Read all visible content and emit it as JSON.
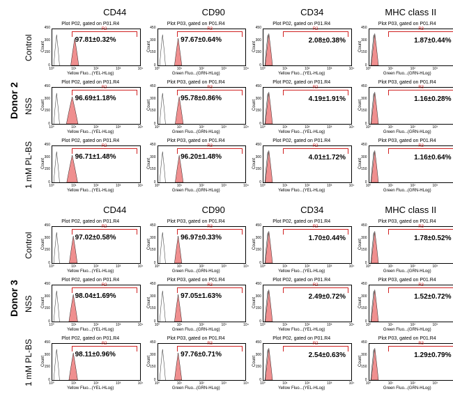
{
  "markers": [
    "CD44",
    "CD90",
    "CD34",
    "MHC class II"
  ],
  "donors": [
    {
      "label": "Donor 2",
      "rows": [
        {
          "row_label": "Control",
          "cells": [
            {
              "title": "Plot P02, gated on P01.R4",
              "gate": "R2",
              "value": "97.81±0.32%",
              "axis": "Yellow Fluo...(YEL-HLog)",
              "type": "high",
              "peak_center": 0.62,
              "peak_width": 0.22
            },
            {
              "title": "Plot P03, gated on P01.R4",
              "gate": "R3",
              "value": "97.67±0.64%",
              "axis": "Green Fluo...(GRN-HLog)",
              "type": "high",
              "peak_center": 0.55,
              "peak_width": 0.2
            },
            {
              "title": "Plot P02, gated on P01.R4",
              "gate": "R2",
              "value": "2.08±0.38%",
              "axis": "Yellow Fluo...(YEL-HLog)",
              "type": "low",
              "peak_center": 0.17,
              "peak_width": 0.1
            },
            {
              "title": "Plot P03, gated on P01.R4",
              "gate": "R3",
              "value": "1.87±0.44%",
              "axis": "Green Fluo...(GRN-HLog)",
              "type": "low",
              "peak_center": 0.15,
              "peak_width": 0.1
            }
          ]
        },
        {
          "row_label": "NSS",
          "cells": [
            {
              "title": "Plot P02, gated on P01.R4",
              "gate": "R2",
              "value": "96.69±1.18%",
              "axis": "Yellow Fluo...(YEL-HLog)",
              "type": "high",
              "peak_center": 0.55,
              "peak_width": 0.32
            },
            {
              "title": "Plot P03, gated on P01.R4",
              "gate": "R3",
              "value": "95.78±0.86%",
              "axis": "Green Fluo...(GRN-HLog)",
              "type": "high",
              "peak_center": 0.58,
              "peak_width": 0.22
            },
            {
              "title": "Plot P02, gated on P01.R4",
              "gate": "R2",
              "value": "4.19±1.91%",
              "axis": "Yellow Fluo...(YEL-HLog)",
              "type": "low",
              "peak_center": 0.17,
              "peak_width": 0.12
            },
            {
              "title": "Plot P03, gated on P01.R4",
              "gate": "R3",
              "value": "1.16±0.28%",
              "axis": "Green Fluo...(GRN-HLog)",
              "type": "low",
              "peak_center": 0.15,
              "peak_width": 0.1
            }
          ]
        },
        {
          "row_label": "1 mM PL-BS",
          "cells": [
            {
              "title": "Plot P02, gated on P01.R4",
              "gate": "R2",
              "value": "96.71±1.48%",
              "axis": "Yellow Fluo...(YEL-HLog)",
              "type": "high",
              "peak_center": 0.55,
              "peak_width": 0.3
            },
            {
              "title": "Plot P03, gated on P01.R4",
              "gate": "R3",
              "value": "96.20±1.48%",
              "axis": "Green Fluo...(GRN-HLog)",
              "type": "high",
              "peak_center": 0.58,
              "peak_width": 0.22
            },
            {
              "title": "Plot P02, gated on P01.R4",
              "gate": "R2",
              "value": "4.01±1.72%",
              "axis": "Yellow Fluo...(YEL-HLog)",
              "type": "low",
              "peak_center": 0.17,
              "peak_width": 0.12
            },
            {
              "title": "Plot P03, gated on P01.R4",
              "gate": "R3",
              "value": "1.16±0.64%",
              "axis": "Green Fluo...(GRN-HLog)",
              "type": "low",
              "peak_center": 0.15,
              "peak_width": 0.1
            }
          ]
        }
      ]
    },
    {
      "label": "Donor 3",
      "rows": [
        {
          "row_label": "Control",
          "cells": [
            {
              "title": "Plot P02, gated on P01.R4",
              "gate": "R2",
              "value": "97.02±0.58%",
              "axis": "Yellow Fluo...(YEL-HLog)",
              "type": "high",
              "peak_center": 0.58,
              "peak_width": 0.22
            },
            {
              "title": "Plot P03, gated on P01.R4",
              "gate": "R3",
              "value": "96.97±0.33%",
              "axis": "Green Fluo...(GRN-HLog)",
              "type": "high",
              "peak_center": 0.55,
              "peak_width": 0.2
            },
            {
              "title": "Plot P02, gated on P01.R4",
              "gate": "R2",
              "value": "1.70±0.44%",
              "axis": "Yellow Fluo...(YEL-HLog)",
              "type": "low",
              "peak_center": 0.16,
              "peak_width": 0.1
            },
            {
              "title": "Plot P03, gated on P01.R4",
              "gate": "R3",
              "value": "1.78±0.52%",
              "axis": "Green Fluo...(GRN-HLog)",
              "type": "low",
              "peak_center": 0.15,
              "peak_width": 0.1
            }
          ]
        },
        {
          "row_label": "NSS",
          "cells": [
            {
              "title": "Plot P02, gated on P01.R4",
              "gate": "R2",
              "value": "98.04±1.69%",
              "axis": "Yellow Fluo...(YEL-HLog)",
              "type": "high",
              "peak_center": 0.58,
              "peak_width": 0.24
            },
            {
              "title": "Plot P03, gated on P01.R4",
              "gate": "R3",
              "value": "97.05±1.63%",
              "axis": "Green Fluo...(GRN-HLog)",
              "type": "high",
              "peak_center": 0.55,
              "peak_width": 0.2
            },
            {
              "title": "Plot P02, gated on P01.R4",
              "gate": "R2",
              "value": "2.49±0.72%",
              "axis": "Yellow Fluo...(YEL-HLog)",
              "type": "low",
              "peak_center": 0.17,
              "peak_width": 0.11
            },
            {
              "title": "Plot P03, gated on P01.R4",
              "gate": "R3",
              "value": "1.52±0.72%",
              "axis": "Green Fluo...(GRN-HLog)",
              "type": "low",
              "peak_center": 0.15,
              "peak_width": 0.1
            }
          ]
        },
        {
          "row_label": "1 mM PL-BS",
          "cells": [
            {
              "title": "Plot P02, gated on P01.R4",
              "gate": "R2",
              "value": "98.11±0.96%",
              "axis": "Yellow Fluo...(YEL-HLog)",
              "type": "high",
              "peak_center": 0.58,
              "peak_width": 0.24
            },
            {
              "title": "Plot P03, gated on P01.R4",
              "gate": "R3",
              "value": "97.76±0.71%",
              "axis": "Green Fluo...(GRN-HLog)",
              "type": "high",
              "peak_center": 0.55,
              "peak_width": 0.2
            },
            {
              "title": "Plot P02, gated on P01.R4",
              "gate": "R2",
              "value": "2.54±0.63%",
              "axis": "Yellow Fluo...(YEL-HLog)",
              "type": "low",
              "peak_center": 0.17,
              "peak_width": 0.11
            },
            {
              "title": "Plot P03, gated on P01.R4",
              "gate": "R3",
              "value": "1.29±0.79%",
              "axis": "Green Fluo...(GRN-HLog)",
              "type": "low",
              "peak_center": 0.15,
              "peak_width": 0.1
            }
          ]
        }
      ]
    }
  ],
  "colors": {
    "fill": "#ef8f8f",
    "stroke": "#000000",
    "gate": "#d02020",
    "control_stroke": "#333333"
  },
  "yticks": [
    "0",
    "150",
    "300",
    "450"
  ],
  "xticks": [
    "10⁰",
    "10¹",
    "10²",
    "10³",
    "10⁴"
  ],
  "ylabel": "Count"
}
